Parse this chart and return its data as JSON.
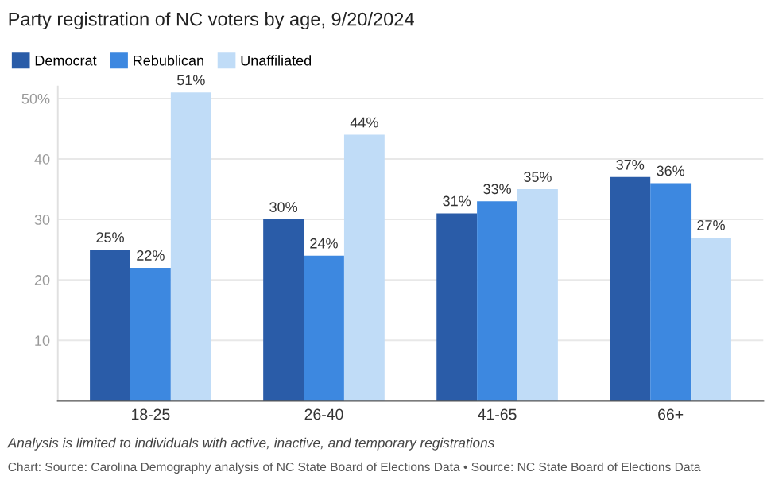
{
  "chart_data": {
    "type": "bar",
    "title": "Party registration of NC voters by age, 9/20/2024",
    "categories": [
      "18-25",
      "26-40",
      "41-65",
      "66+"
    ],
    "series": [
      {
        "name": "Democrat",
        "color": "#2a5ca8",
        "values": [
          25,
          30,
          31,
          37
        ],
        "value_labels": [
          "25%",
          "30%",
          "31%",
          "37%"
        ]
      },
      {
        "name": "Rebublican",
        "color": "#3d88e0",
        "values": [
          22,
          24,
          33,
          36
        ],
        "value_labels": [
          "22%",
          "24%",
          "33%",
          "36%"
        ]
      },
      {
        "name": "Unaffiliated",
        "color": "#c0dcf7",
        "values": [
          51,
          44,
          35,
          27
        ],
        "value_labels": [
          "51%",
          "44%",
          "35%",
          "27%"
        ]
      }
    ],
    "ylim": [
      0,
      52
    ],
    "yticks": [
      {
        "value": 0,
        "label": null
      },
      10,
      20,
      30,
      40,
      {
        "value": 50,
        "label": "50%"
      }
    ],
    "grid": "y",
    "legend": "top left",
    "annotations": [
      "Analysis is limited to individuals with active, inactive, and temporary registrations",
      "Chart: Source: Carolina Demography analysis of NC State Board of Elections Data • Source: NC State Board of Elections Data"
    ]
  }
}
